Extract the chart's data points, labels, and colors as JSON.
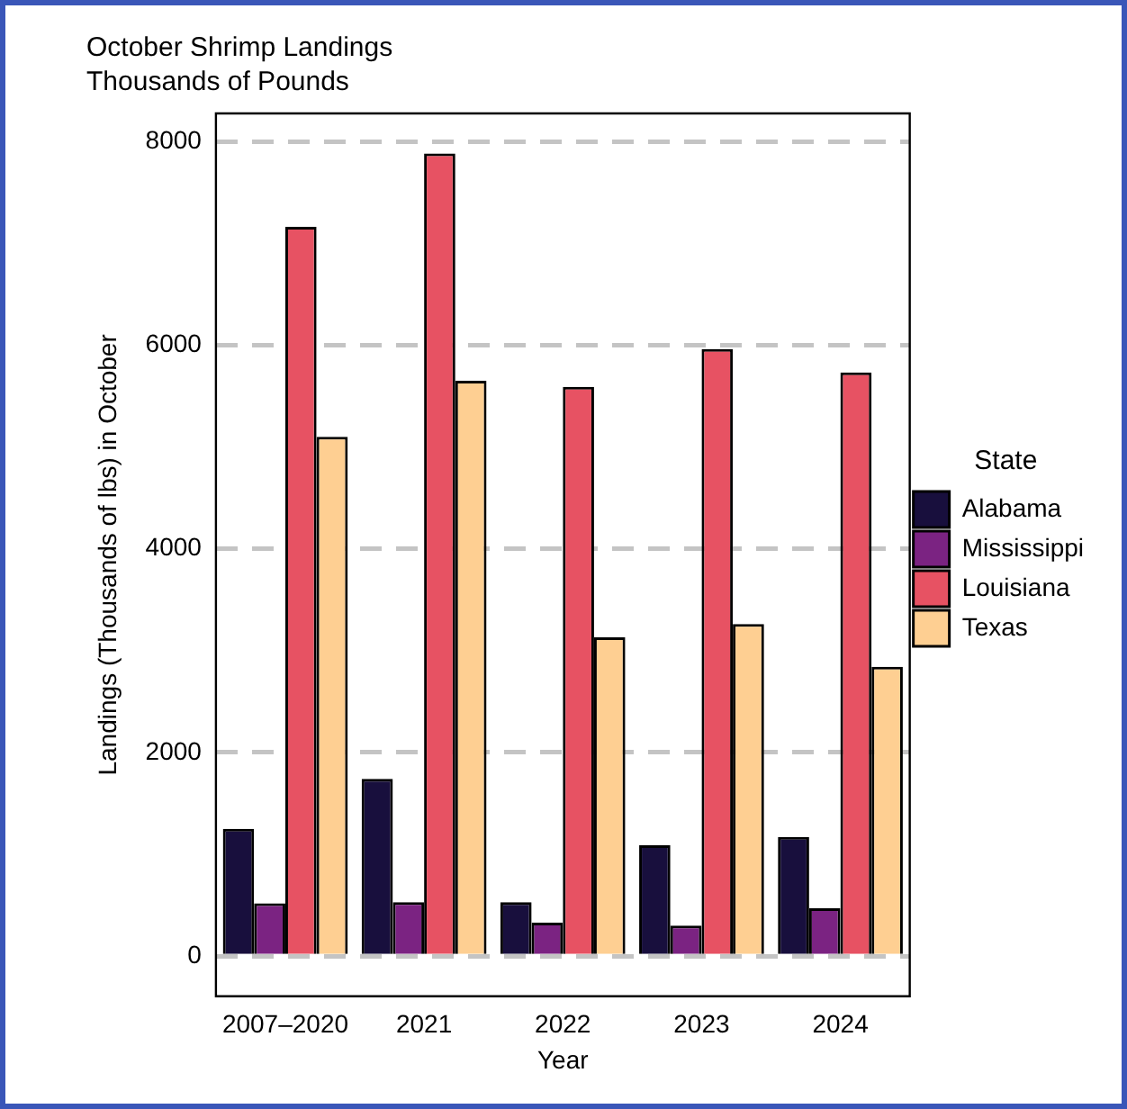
{
  "chart_data": {
    "type": "bar",
    "title": "October Shrimp Landings",
    "subtitle": "Thousands of Pounds",
    "xlabel": "Year",
    "ylabel": "Landings (Thousands of lbs) in October",
    "legend_title": "State",
    "categories": [
      "2007–2020",
      "2021",
      "2022",
      "2023",
      "2024"
    ],
    "series": [
      {
        "name": "Alabama",
        "color": "#180f3d",
        "values": [
          1250,
          1740,
          530,
          1090,
          1170
        ]
      },
      {
        "name": "Mississippi",
        "color": "#7b2382",
        "values": [
          520,
          530,
          330,
          300,
          470
        ]
      },
      {
        "name": "Louisiana",
        "color": "#e75263",
        "values": [
          7160,
          7880,
          5590,
          5960,
          5730
        ]
      },
      {
        "name": "Texas",
        "color": "#fecf92",
        "values": [
          5100,
          5650,
          3130,
          3260,
          2840
        ]
      }
    ],
    "ylim": [
      -394,
      8274
    ],
    "yticks": [
      0,
      2000,
      4000,
      6000,
      8000
    ],
    "grid": "y",
    "legend": "right"
  }
}
